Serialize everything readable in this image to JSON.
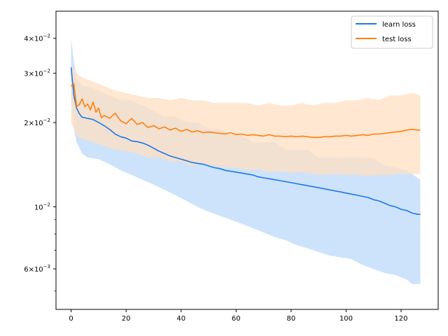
{
  "chart_data": {
    "type": "line",
    "title": "",
    "xlabel": "",
    "ylabel": "",
    "y_scale": "log",
    "xlim": [
      -5.5,
      133.5
    ],
    "ylim": [
      0.0043,
      0.05
    ],
    "grid": false,
    "legend_position": "top-right",
    "x_ticks": [
      0,
      20,
      40,
      60,
      80,
      100,
      120
    ],
    "x_tick_labels": [
      "0",
      "20",
      "40",
      "60",
      "80",
      "100",
      "120"
    ],
    "y_ticks": [
      0.006,
      0.01,
      0.02,
      0.03,
      0.04
    ],
    "y_tick_labels": [
      {
        "base": "6×10",
        "exp": "−3"
      },
      {
        "base": "10",
        "exp": "−2"
      },
      {
        "base": "2×10",
        "exp": "−2"
      },
      {
        "base": "3×10",
        "exp": "−2"
      },
      {
        "base": "4×10",
        "exp": "−2"
      }
    ],
    "y_minor_ticks": [
      0.005,
      0.007,
      0.008,
      0.009
    ],
    "series": [
      {
        "name": "learn loss",
        "color": "#1f77e8",
        "band_color": "#cce3fb",
        "points": [
          [
            0,
            0.0315
          ],
          [
            1,
            0.025
          ],
          [
            2,
            0.0225
          ],
          [
            3,
            0.0215
          ],
          [
            4,
            0.0209
          ],
          [
            6,
            0.0207
          ],
          [
            8,
            0.0205
          ],
          [
            10,
            0.02
          ],
          [
            12,
            0.0195
          ],
          [
            14,
            0.0189
          ],
          [
            16,
            0.0182
          ],
          [
            18,
            0.0178
          ],
          [
            20,
            0.0176
          ],
          [
            22,
            0.0172
          ],
          [
            24,
            0.0171
          ],
          [
            26,
            0.0169
          ],
          [
            28,
            0.0166
          ],
          [
            30,
            0.0162
          ],
          [
            32,
            0.0158
          ],
          [
            34,
            0.0155
          ],
          [
            36,
            0.0152
          ],
          [
            38,
            0.015
          ],
          [
            40,
            0.0148
          ],
          [
            42,
            0.0146
          ],
          [
            44,
            0.0144
          ],
          [
            46,
            0.0143
          ],
          [
            48,
            0.0142
          ],
          [
            50,
            0.014
          ],
          [
            52,
            0.0138
          ],
          [
            54,
            0.0137
          ],
          [
            56,
            0.0135
          ],
          [
            58,
            0.0134
          ],
          [
            60,
            0.0133
          ],
          [
            62,
            0.0132
          ],
          [
            64,
            0.0131
          ],
          [
            66,
            0.013
          ],
          [
            68,
            0.0128
          ],
          [
            70,
            0.0127
          ],
          [
            72,
            0.0126
          ],
          [
            74,
            0.0125
          ],
          [
            76,
            0.0124
          ],
          [
            78,
            0.0123
          ],
          [
            80,
            0.0122
          ],
          [
            82,
            0.0121
          ],
          [
            84,
            0.012
          ],
          [
            86,
            0.0119
          ],
          [
            88,
            0.0118
          ],
          [
            90,
            0.0117
          ],
          [
            92,
            0.0116
          ],
          [
            94,
            0.0115
          ],
          [
            96,
            0.0114
          ],
          [
            98,
            0.0113
          ],
          [
            100,
            0.0112
          ],
          [
            102,
            0.0111
          ],
          [
            104,
            0.011
          ],
          [
            106,
            0.0109
          ],
          [
            108,
            0.0108
          ],
          [
            110,
            0.0106
          ],
          [
            112,
            0.0105
          ],
          [
            114,
            0.0103
          ],
          [
            116,
            0.0101
          ],
          [
            118,
            0.01
          ],
          [
            120,
            0.0098
          ],
          [
            122,
            0.0097
          ],
          [
            124,
            0.0095
          ],
          [
            126,
            0.0094
          ],
          [
            127,
            0.0094
          ]
        ],
        "upper": [
          [
            0,
            0.04
          ],
          [
            1,
            0.033
          ],
          [
            2,
            0.029
          ],
          [
            4,
            0.027
          ],
          [
            6,
            0.027
          ],
          [
            10,
            0.026
          ],
          [
            14,
            0.025
          ],
          [
            18,
            0.024
          ],
          [
            22,
            0.024
          ],
          [
            26,
            0.023
          ],
          [
            30,
            0.022
          ],
          [
            34,
            0.021
          ],
          [
            38,
            0.021
          ],
          [
            42,
            0.02
          ],
          [
            46,
            0.02
          ],
          [
            50,
            0.019
          ],
          [
            54,
            0.019
          ],
          [
            58,
            0.018
          ],
          [
            62,
            0.018
          ],
          [
            66,
            0.017
          ],
          [
            70,
            0.017
          ],
          [
            74,
            0.017
          ],
          [
            78,
            0.016
          ],
          [
            82,
            0.016
          ],
          [
            86,
            0.016
          ],
          [
            90,
            0.015
          ],
          [
            94,
            0.015
          ],
          [
            98,
            0.015
          ],
          [
            102,
            0.015
          ],
          [
            106,
            0.015
          ],
          [
            110,
            0.015
          ],
          [
            114,
            0.014
          ],
          [
            118,
            0.0138
          ],
          [
            122,
            0.0135
          ],
          [
            127,
            0.0125
          ]
        ],
        "lower": [
          [
            0,
            0.025
          ],
          [
            1,
            0.019
          ],
          [
            2,
            0.017
          ],
          [
            4,
            0.0155
          ],
          [
            6,
            0.015
          ],
          [
            10,
            0.0148
          ],
          [
            14,
            0.0142
          ],
          [
            18,
            0.0135
          ],
          [
            22,
            0.013
          ],
          [
            26,
            0.0125
          ],
          [
            30,
            0.012
          ],
          [
            34,
            0.0115
          ],
          [
            38,
            0.011
          ],
          [
            42,
            0.0105
          ],
          [
            46,
            0.01
          ],
          [
            50,
            0.0096
          ],
          [
            54,
            0.0093
          ],
          [
            58,
            0.009
          ],
          [
            62,
            0.0087
          ],
          [
            66,
            0.0084
          ],
          [
            70,
            0.0081
          ],
          [
            74,
            0.0078
          ],
          [
            78,
            0.0076
          ],
          [
            82,
            0.0073
          ],
          [
            86,
            0.0071
          ],
          [
            90,
            0.0069
          ],
          [
            94,
            0.0067
          ],
          [
            98,
            0.0066
          ],
          [
            102,
            0.0065
          ],
          [
            106,
            0.0062
          ],
          [
            110,
            0.006
          ],
          [
            114,
            0.0058
          ],
          [
            118,
            0.0057
          ],
          [
            122,
            0.0055
          ],
          [
            124,
            0.0053
          ],
          [
            127,
            0.0053
          ]
        ]
      },
      {
        "name": "test loss",
        "color": "#ff7f0e",
        "band_color": "#ffdfc2",
        "points": [
          [
            0,
            0.027
          ],
          [
            1,
            0.0275
          ],
          [
            2,
            0.0228
          ],
          [
            3,
            0.0232
          ],
          [
            4,
            0.0243
          ],
          [
            5,
            0.0228
          ],
          [
            6,
            0.0233
          ],
          [
            7,
            0.0222
          ],
          [
            8,
            0.0237
          ],
          [
            9,
            0.0218
          ],
          [
            10,
            0.0225
          ],
          [
            11,
            0.0208
          ],
          [
            12,
            0.0212
          ],
          [
            14,
            0.0207
          ],
          [
            16,
            0.0216
          ],
          [
            18,
            0.0203
          ],
          [
            20,
            0.0198
          ],
          [
            22,
            0.0207
          ],
          [
            24,
            0.0197
          ],
          [
            26,
            0.02
          ],
          [
            28,
            0.0192
          ],
          [
            30,
            0.0195
          ],
          [
            32,
            0.019
          ],
          [
            34,
            0.0193
          ],
          [
            36,
            0.0188
          ],
          [
            38,
            0.0191
          ],
          [
            40,
            0.0186
          ],
          [
            42,
            0.0189
          ],
          [
            44,
            0.0185
          ],
          [
            46,
            0.0187
          ],
          [
            48,
            0.0184
          ],
          [
            50,
            0.0185
          ],
          [
            52,
            0.0184
          ],
          [
            54,
            0.0183
          ],
          [
            56,
            0.0182
          ],
          [
            58,
            0.0184
          ],
          [
            60,
            0.0181
          ],
          [
            62,
            0.0182
          ],
          [
            64,
            0.018
          ],
          [
            66,
            0.0181
          ],
          [
            68,
            0.018
          ],
          [
            70,
            0.0179
          ],
          [
            72,
            0.0181
          ],
          [
            74,
            0.0179
          ],
          [
            76,
            0.0179
          ],
          [
            78,
            0.0178
          ],
          [
            80,
            0.0179
          ],
          [
            82,
            0.0178
          ],
          [
            84,
            0.0179
          ],
          [
            86,
            0.0178
          ],
          [
            88,
            0.0177
          ],
          [
            90,
            0.0177
          ],
          [
            92,
            0.0178
          ],
          [
            94,
            0.0178
          ],
          [
            96,
            0.0179
          ],
          [
            98,
            0.0179
          ],
          [
            100,
            0.018
          ],
          [
            102,
            0.0179
          ],
          [
            104,
            0.018
          ],
          [
            106,
            0.0181
          ],
          [
            108,
            0.018
          ],
          [
            110,
            0.0182
          ],
          [
            112,
            0.0182
          ],
          [
            114,
            0.0183
          ],
          [
            116,
            0.0184
          ],
          [
            118,
            0.0185
          ],
          [
            120,
            0.0186
          ],
          [
            122,
            0.0188
          ],
          [
            124,
            0.0189
          ],
          [
            126,
            0.0188
          ],
          [
            127,
            0.0188
          ]
        ],
        "upper": [
          [
            0,
            0.032
          ],
          [
            2,
            0.03
          ],
          [
            4,
            0.029
          ],
          [
            8,
            0.028
          ],
          [
            12,
            0.027
          ],
          [
            16,
            0.026
          ],
          [
            20,
            0.0255
          ],
          [
            24,
            0.025
          ],
          [
            28,
            0.0245
          ],
          [
            32,
            0.0245
          ],
          [
            36,
            0.024
          ],
          [
            40,
            0.0245
          ],
          [
            44,
            0.024
          ],
          [
            48,
            0.024
          ],
          [
            52,
            0.0235
          ],
          [
            56,
            0.0235
          ],
          [
            60,
            0.0235
          ],
          [
            64,
            0.0235
          ],
          [
            68,
            0.023
          ],
          [
            72,
            0.0235
          ],
          [
            76,
            0.023
          ],
          [
            80,
            0.023
          ],
          [
            84,
            0.0235
          ],
          [
            88,
            0.023
          ],
          [
            92,
            0.0235
          ],
          [
            96,
            0.0235
          ],
          [
            100,
            0.024
          ],
          [
            104,
            0.024
          ],
          [
            108,
            0.0245
          ],
          [
            112,
            0.024
          ],
          [
            116,
            0.025
          ],
          [
            120,
            0.025
          ],
          [
            124,
            0.0255
          ],
          [
            127,
            0.025
          ]
        ],
        "lower": [
          [
            0,
            0.02
          ],
          [
            2,
            0.018
          ],
          [
            4,
            0.0175
          ],
          [
            8,
            0.017
          ],
          [
            12,
            0.0165
          ],
          [
            16,
            0.016
          ],
          [
            20,
            0.0158
          ],
          [
            24,
            0.0155
          ],
          [
            28,
            0.015
          ],
          [
            32,
            0.015
          ],
          [
            36,
            0.0145
          ],
          [
            40,
            0.0145
          ],
          [
            44,
            0.014
          ],
          [
            48,
            0.0143
          ],
          [
            52,
            0.014
          ],
          [
            56,
            0.0138
          ],
          [
            60,
            0.0138
          ],
          [
            64,
            0.0135
          ],
          [
            68,
            0.0136
          ],
          [
            72,
            0.0133
          ],
          [
            76,
            0.0134
          ],
          [
            80,
            0.0132
          ],
          [
            84,
            0.0133
          ],
          [
            88,
            0.0131
          ],
          [
            92,
            0.013
          ],
          [
            96,
            0.0131
          ],
          [
            100,
            0.013
          ],
          [
            104,
            0.013
          ],
          [
            108,
            0.0129
          ],
          [
            112,
            0.013
          ],
          [
            116,
            0.013
          ],
          [
            120,
            0.0131
          ],
          [
            124,
            0.0131
          ],
          [
            127,
            0.0131
          ]
        ]
      }
    ]
  }
}
